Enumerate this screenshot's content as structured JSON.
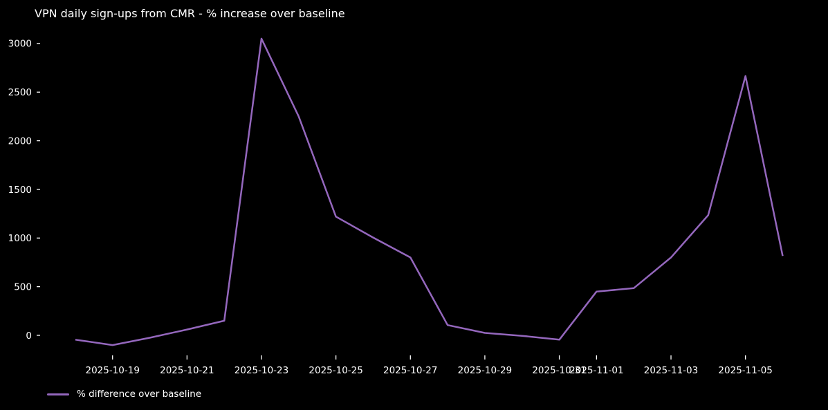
{
  "figure": {
    "title": "VPN daily sign-ups from CMR - % increase over baseline",
    "background_color": "#000000",
    "text_color": "#ffffff"
  },
  "legend": {
    "label": "% difference over baseline",
    "swatch_color": "#9467bd",
    "position": "lower-left"
  },
  "chart_data": {
    "type": "line",
    "title": "VPN daily sign-ups from CMR - % increase over baseline",
    "xlabel": "",
    "ylabel": "",
    "grid": false,
    "background": "#000000",
    "tick_color": "#ffffff",
    "categories": [
      "2025-10-18",
      "2025-10-19",
      "2025-10-20",
      "2025-10-21",
      "2025-10-22",
      "2025-10-23",
      "2025-10-24",
      "2025-10-25",
      "2025-10-26",
      "2025-10-27",
      "2025-10-28",
      "2025-10-29",
      "2025-10-30",
      "2025-10-31",
      "2025-11-01",
      "2025-11-02",
      "2025-11-03",
      "2025-11-04",
      "2025-11-05",
      "2025-11-06"
    ],
    "series": [
      {
        "name": "% difference over baseline",
        "color": "#9467bd",
        "values": [
          -45,
          -100,
          -25,
          60,
          150,
          3050,
          2250,
          1220,
          1005,
          800,
          105,
          25,
          -5,
          -45,
          450,
          485,
          800,
          1235,
          2665,
          815
        ]
      }
    ],
    "x_tick_labels": [
      "2025-10-19",
      "2025-10-21",
      "2025-10-23",
      "2025-10-25",
      "2025-10-27",
      "2025-10-29",
      "2025-10-31",
      "2025-11-01",
      "2025-11-03",
      "2025-11-05"
    ],
    "y_ticks": [
      0,
      500,
      1000,
      1500,
      2000,
      2500,
      3000
    ],
    "ylim": [
      -150,
      3100
    ],
    "legend_position": "lower left"
  }
}
